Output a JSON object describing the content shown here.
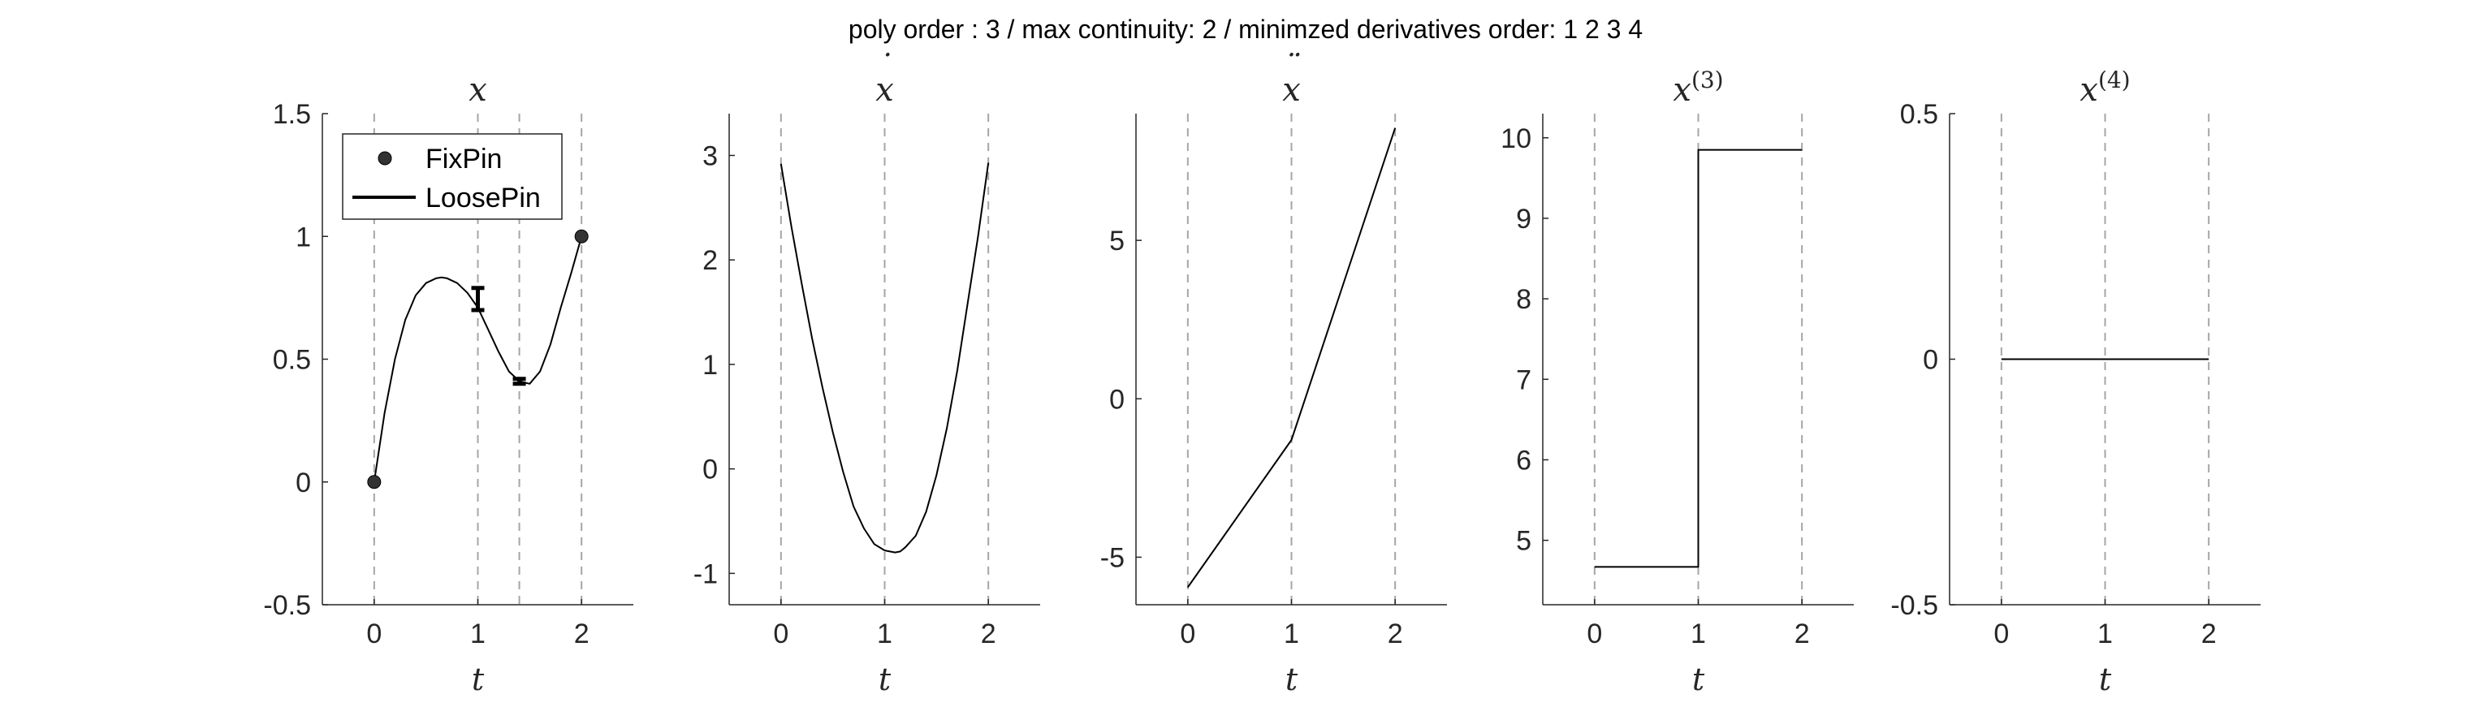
{
  "figure": {
    "suptitle": "poly order : 3 / max continuity: 2 / minimzed derivatives order: 1  2  3  4",
    "colors": {
      "axis": "#262626",
      "curve": "#000000",
      "vline": "#a6a6a6",
      "marker": "#333333",
      "background": "#ffffff"
    }
  },
  "chart_data": [
    {
      "type": "line",
      "title": "x",
      "title_sup": "",
      "title_accent": "",
      "xlabel": "t",
      "xlim": [
        -0.5,
        2.5
      ],
      "ylim": [
        -0.5,
        1.5
      ],
      "xticks": [
        0,
        1,
        2
      ],
      "xtick_labels": [
        "0",
        "1",
        "2"
      ],
      "yticks": [
        -0.5,
        0,
        0.5,
        1,
        1.5
      ],
      "ytick_labels": [
        "-0.5",
        "0",
        "0.5",
        "1",
        "1.5"
      ],
      "vlines": [
        0,
        1,
        1.4,
        2
      ],
      "series": [
        {
          "name": "x(t)",
          "x": [
            0,
            0.1,
            0.2,
            0.3,
            0.4,
            0.5,
            0.6,
            0.65,
            0.7,
            0.8,
            0.9,
            1.0,
            1.1,
            1.2,
            1.3,
            1.4,
            1.5,
            1.6,
            1.7,
            1.8,
            1.9,
            2.0
          ],
          "y": [
            0,
            0.28,
            0.5,
            0.66,
            0.76,
            0.81,
            0.83,
            0.833,
            0.83,
            0.81,
            0.77,
            0.71,
            0.62,
            0.53,
            0.45,
            0.41,
            0.4,
            0.45,
            0.56,
            0.71,
            0.85,
            1.0
          ]
        }
      ],
      "fix_pins": [
        {
          "t": 0,
          "value": 0
        },
        {
          "t": 2,
          "value": 1
        }
      ],
      "loose_pins": [
        {
          "t": 1,
          "low": 0.7,
          "high": 0.79
        },
        {
          "t": 1.4,
          "low": 0.4,
          "high": 0.42
        }
      ],
      "legend": {
        "position": "top-left",
        "entries": [
          "FixPin",
          "LoosePin"
        ]
      }
    },
    {
      "type": "line",
      "title": "x",
      "title_sup": "",
      "title_accent": "˙",
      "xlabel": "t",
      "xlim": [
        -0.5,
        2.5
      ],
      "ylim": [
        -1.3,
        3.4
      ],
      "xticks": [
        0,
        1,
        2
      ],
      "xtick_labels": [
        "0",
        "1",
        "2"
      ],
      "yticks": [
        -1,
        0,
        1,
        2,
        3
      ],
      "ytick_labels": [
        "-1",
        "0",
        "1",
        "2",
        "3"
      ],
      "vlines": [
        0,
        1,
        2
      ],
      "series": [
        {
          "name": "dx/dt",
          "x": [
            0,
            0.1,
            0.2,
            0.3,
            0.4,
            0.5,
            0.6,
            0.7,
            0.8,
            0.9,
            1.0,
            1.1,
            1.15,
            1.2,
            1.3,
            1.4,
            1.5,
            1.6,
            1.7,
            1.8,
            1.9,
            2.0
          ],
          "y": [
            2.92,
            2.32,
            1.77,
            1.25,
            0.78,
            0.35,
            -0.03,
            -0.36,
            -0.57,
            -0.72,
            -0.78,
            -0.8,
            -0.79,
            -0.75,
            -0.64,
            -0.41,
            -0.06,
            0.39,
            0.94,
            1.58,
            2.22,
            2.93
          ]
        }
      ]
    },
    {
      "type": "line",
      "title": "x",
      "title_sup": "",
      "title_accent": "¨",
      "xlabel": "t",
      "xlim": [
        -0.5,
        2.5
      ],
      "ylim": [
        -6.5,
        9.0
      ],
      "xticks": [
        0,
        1,
        2
      ],
      "xtick_labels": [
        "0",
        "1",
        "2"
      ],
      "yticks": [
        -5,
        0,
        5
      ],
      "ytick_labels": [
        "-5",
        "0",
        "5"
      ],
      "vlines": [
        0,
        1,
        2
      ],
      "series": [
        {
          "name": "d2x/dt2",
          "x": [
            0,
            1,
            2
          ],
          "y": [
            -5.95,
            -1.3,
            8.55
          ]
        }
      ]
    },
    {
      "type": "line",
      "title": "x",
      "title_sup": "(3)",
      "title_accent": "",
      "xlabel": "t",
      "xlim": [
        -0.5,
        2.5
      ],
      "ylim": [
        4.2,
        10.3
      ],
      "xticks": [
        0,
        1,
        2
      ],
      "xtick_labels": [
        "0",
        "1",
        "2"
      ],
      "yticks": [
        5,
        6,
        7,
        8,
        9,
        10
      ],
      "ytick_labels": [
        "5",
        "6",
        "7",
        "8",
        "9",
        "10"
      ],
      "vlines": [
        0,
        1,
        2
      ],
      "series": [
        {
          "name": "d3x/dt3",
          "x": [
            0,
            1,
            1,
            2
          ],
          "y": [
            4.67,
            4.67,
            9.85,
            9.85
          ]
        }
      ]
    },
    {
      "type": "line",
      "title": "x",
      "title_sup": "(4)",
      "title_accent": "",
      "xlabel": "t",
      "xlim": [
        -0.5,
        2.5
      ],
      "ylim": [
        -0.5,
        0.5
      ],
      "xticks": [
        0,
        1,
        2
      ],
      "xtick_labels": [
        "0",
        "1",
        "2"
      ],
      "yticks": [
        -0.5,
        0,
        0.5
      ],
      "ytick_labels": [
        "-0.5",
        "0",
        "0.5"
      ],
      "vlines": [
        0,
        1,
        2
      ],
      "series": [
        {
          "name": "d4x/dt4",
          "x": [
            0,
            2
          ],
          "y": [
            0,
            0
          ]
        }
      ]
    }
  ]
}
